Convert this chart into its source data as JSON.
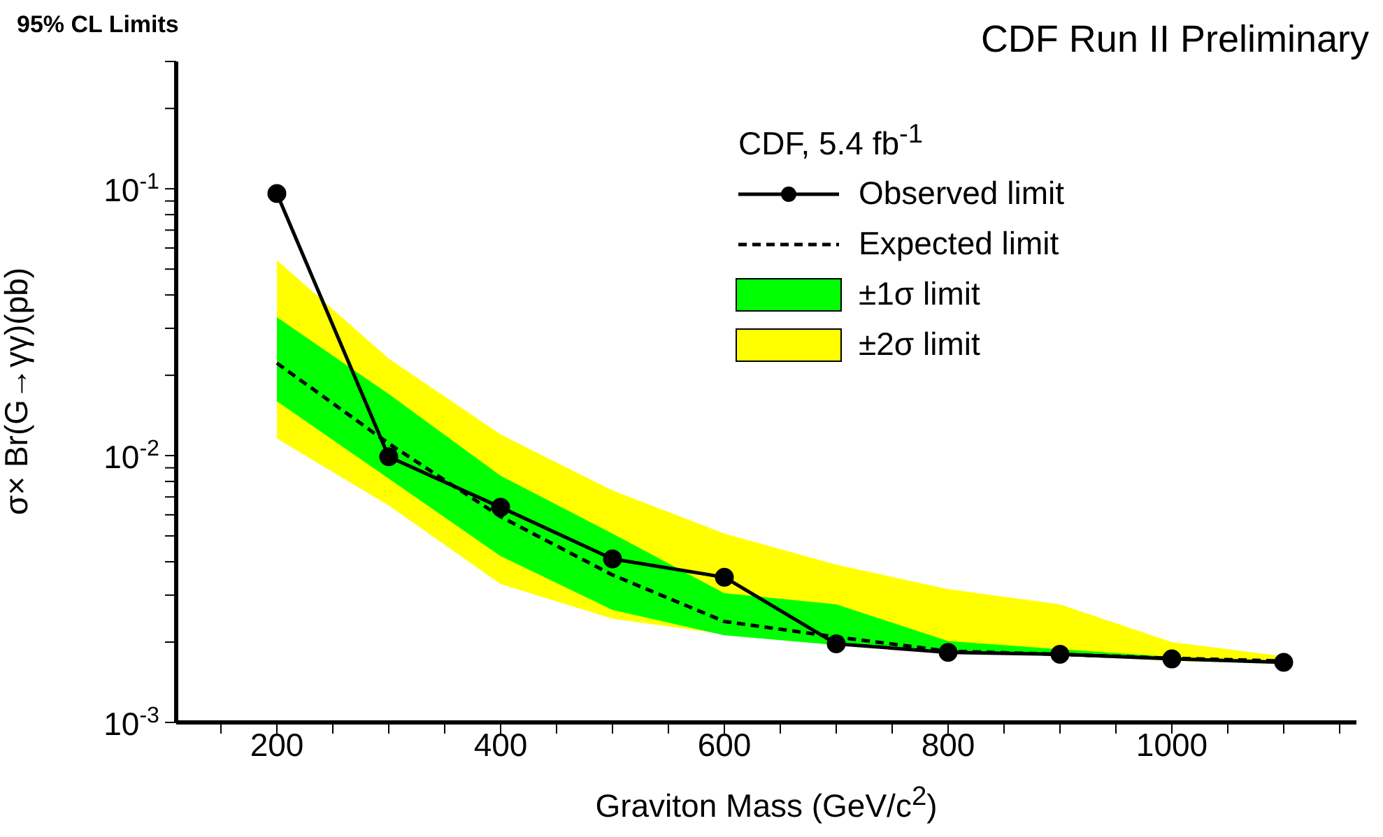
{
  "chart_data": {
    "type": "line",
    "title": "95% CL Limits",
    "subtitle": "CDF Run II Preliminary",
    "xlabel": "Graviton Mass (GeV/c$^{2}$)",
    "ylabel": "σ× Br(G→γγ)(pb)",
    "legend_title": "CDF, 5.4 fb$^{-1}$",
    "legend": "top right",
    "log": "y",
    "x": [
      200,
      300,
      400,
      500,
      600,
      700,
      800,
      900,
      1000,
      1100
    ],
    "xlim": [
      110,
      1165
    ],
    "xticks": [
      {
        "value": 150,
        "label": null
      },
      200,
      {
        "value": 250,
        "label": null
      },
      {
        "value": 300,
        "label": null
      },
      {
        "value": 350,
        "label": null
      },
      400,
      {
        "value": 450,
        "label": null
      },
      {
        "value": 500,
        "label": null
      },
      {
        "value": 550,
        "label": null
      },
      600,
      {
        "value": 650,
        "label": null
      },
      {
        "value": 700,
        "label": null
      },
      {
        "value": 750,
        "label": null
      },
      800,
      {
        "value": 850,
        "label": null
      },
      {
        "value": 900,
        "label": null
      },
      {
        "value": 950,
        "label": null
      },
      1000,
      {
        "value": 1050,
        "label": null
      },
      {
        "value": 1100,
        "label": null
      },
      {
        "value": 1150,
        "label": null
      }
    ],
    "ylim": [
      0.001,
      0.3
    ],
    "yticks": [
      {
        "value": 0.001,
        "label": "10$^{-3}$"
      },
      {
        "value": 0.002,
        "label": null
      },
      {
        "value": 0.003,
        "label": null
      },
      {
        "value": 0.004,
        "label": null
      },
      {
        "value": 0.005,
        "label": null
      },
      {
        "value": 0.006,
        "label": null
      },
      {
        "value": 0.007,
        "label": null
      },
      {
        "value": 0.008,
        "label": null
      },
      {
        "value": 0.009,
        "label": null
      },
      {
        "value": 0.01,
        "label": "10$^{-2}$"
      },
      {
        "value": 0.02,
        "label": null
      },
      {
        "value": 0.03,
        "label": null
      },
      {
        "value": 0.04,
        "label": null
      },
      {
        "value": 0.05,
        "label": null
      },
      {
        "value": 0.06,
        "label": null
      },
      {
        "value": 0.07,
        "label": null
      },
      {
        "value": 0.08,
        "label": null
      },
      {
        "value": 0.09,
        "label": null
      },
      {
        "value": 0.1,
        "label": "10$^{-1}$"
      },
      {
        "value": 0.2,
        "label": null
      },
      {
        "value": 0.3,
        "label": null
      }
    ],
    "series": [
      {
        "name": "±2σ limit",
        "type": "area",
        "color": "#ffff00",
        "values": [
          null,
          null,
          null,
          null,
          null,
          null,
          null,
          null,
          null,
          null
        ],
        "lower": [
          0.0116,
          0.0065,
          0.0033,
          0.00245,
          0.00214,
          0.00195,
          0.00183,
          0.0018,
          0.0017,
          0.00167
        ],
        "upper": [
          0.054,
          0.0231,
          0.012,
          0.0074,
          0.0051,
          0.0039,
          0.00316,
          0.00277,
          0.002,
          0.00177
        ]
      },
      {
        "name": "±1σ limit",
        "type": "area",
        "color": "#00ff00",
        "values": [
          null,
          null,
          null,
          null,
          null,
          null,
          null,
          null,
          null,
          null
        ],
        "lower": [
          0.016,
          0.0082,
          0.0042,
          0.00264,
          0.00212,
          0.00195,
          0.00185,
          0.0018,
          0.00172,
          0.00168
        ],
        "upper": [
          0.033,
          0.017,
          0.0084,
          0.0051,
          0.00305,
          0.00277,
          0.00202,
          0.00188,
          0.00176,
          0.0017
        ]
      },
      {
        "name": "Expected limit",
        "type": "line",
        "color": "#000000",
        "line_style": "dashed",
        "marker": "none",
        "values": [
          0.0222,
          0.0111,
          0.0059,
          0.00357,
          0.00239,
          0.00209,
          0.00185,
          0.0018,
          0.00174,
          0.0017
        ]
      },
      {
        "name": "Observed limit",
        "type": "line",
        "color": "#000000",
        "line_style": "solid",
        "marker": "circle",
        "values": [
          0.096,
          0.0099,
          0.0064,
          0.0041,
          0.0035,
          0.00197,
          0.00183,
          0.0018,
          0.00173,
          0.00168
        ]
      }
    ]
  }
}
